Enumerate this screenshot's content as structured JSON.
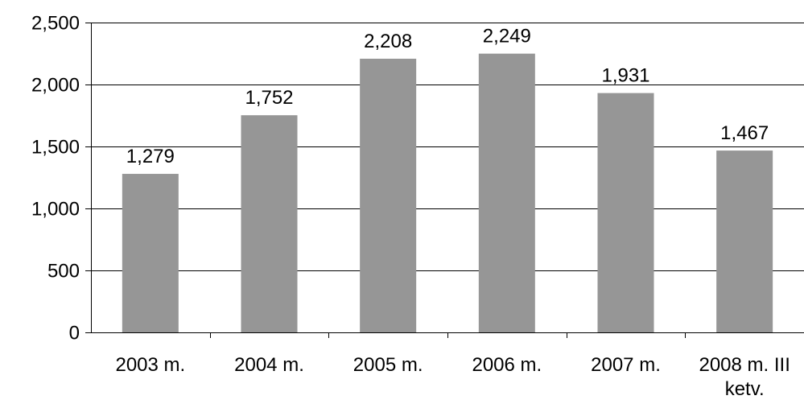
{
  "chart_data": {
    "type": "bar",
    "title": "",
    "xlabel": "",
    "ylabel": "",
    "categories": [
      "2003 m.",
      "2004 m.",
      "2005 m.",
      "2006 m.",
      "2007 m.",
      "2008 m. III ketv."
    ],
    "values": [
      1279,
      1752,
      2208,
      2249,
      1931,
      1467
    ],
    "data_labels": [
      "1,279",
      "1,752",
      "2,208",
      "2,249",
      "1,931",
      "1,467"
    ],
    "ylim": [
      0,
      2500
    ],
    "y_ticks": [
      0,
      500,
      1000,
      1500,
      2000,
      2500
    ],
    "y_tick_labels": [
      "0",
      "500",
      "1,000",
      "1,500",
      "2,000",
      "2,500"
    ],
    "grid": true,
    "legend": "none",
    "bar_color": "#969696"
  }
}
